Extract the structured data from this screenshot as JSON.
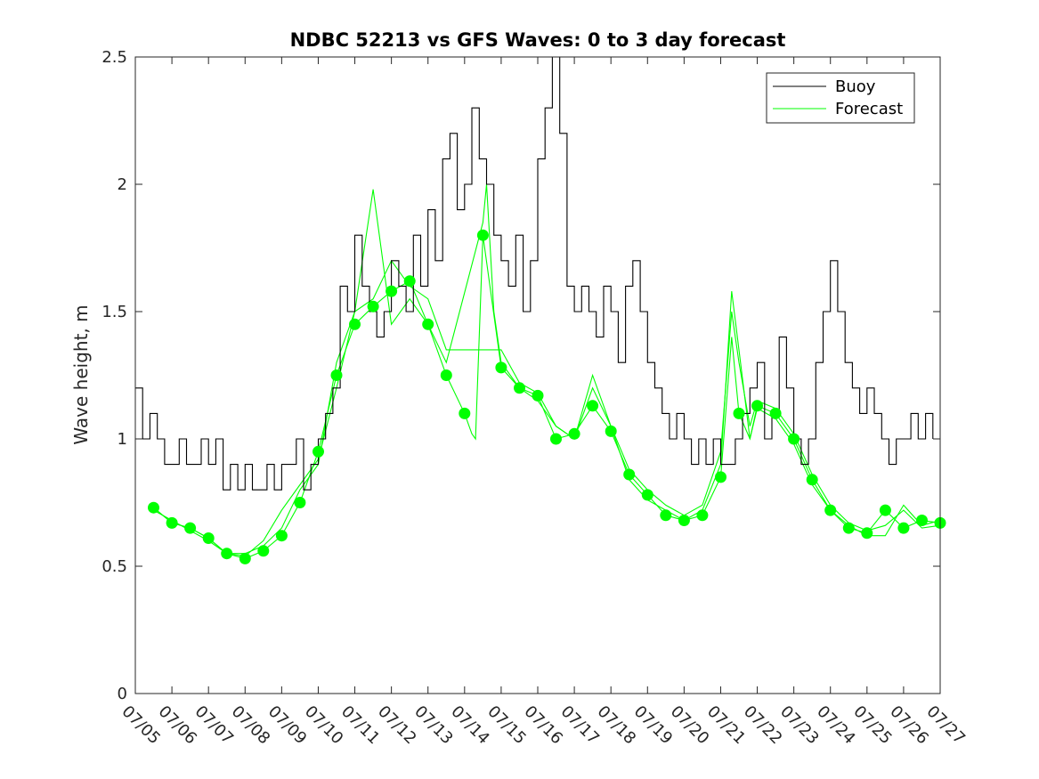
{
  "chart_data": {
    "type": "line",
    "title": "NDBC 52213 vs GFS Waves: 0 to 3 day forecast",
    "xlabel": "",
    "ylabel": "Wave height, m",
    "xlim": [
      0,
      22
    ],
    "ylim": [
      0,
      2.5
    ],
    "grid": false,
    "legend_position": "top-right",
    "x_ticks": [
      "07/05",
      "07/06",
      "07/07",
      "07/08",
      "07/09",
      "07/10",
      "07/11",
      "07/12",
      "07/13",
      "07/14",
      "07/15",
      "07/16",
      "07/17",
      "07/18",
      "07/19",
      "07/20",
      "07/21",
      "07/22",
      "07/23",
      "07/24",
      "07/25",
      "07/26",
      "07/27"
    ],
    "y_ticks": [
      0,
      0.5,
      1,
      1.5,
      2,
      2.5
    ],
    "y_tick_labels": [
      "0",
      "0.5",
      "1",
      "1.5",
      "2",
      "2.5"
    ],
    "series": [
      {
        "name": "Buoy",
        "color": "#000000",
        "x": [
          0.0,
          0.2,
          0.4,
          0.6,
          0.8,
          1.0,
          1.2,
          1.4,
          1.6,
          1.8,
          2.0,
          2.2,
          2.4,
          2.6,
          2.8,
          3.0,
          3.2,
          3.4,
          3.6,
          3.8,
          4.0,
          4.2,
          4.4,
          4.6,
          4.8,
          5.0,
          5.2,
          5.4,
          5.6,
          5.8,
          6.0,
          6.2,
          6.4,
          6.6,
          6.8,
          7.0,
          7.2,
          7.4,
          7.6,
          7.8,
          8.0,
          8.2,
          8.4,
          8.6,
          8.8,
          9.0,
          9.2,
          9.4,
          9.6,
          9.8,
          10.0,
          10.2,
          10.4,
          10.6,
          10.8,
          11.0,
          11.2,
          11.4,
          11.6,
          11.8,
          12.0,
          12.2,
          12.4,
          12.6,
          12.8,
          13.0,
          13.2,
          13.4,
          13.6,
          13.8,
          14.0,
          14.2,
          14.4,
          14.6,
          14.8,
          15.0,
          15.2,
          15.4,
          15.6,
          15.8,
          16.0,
          16.2,
          16.4,
          16.6,
          16.8,
          17.0,
          17.2,
          17.4,
          17.6,
          17.8,
          18.0,
          18.2,
          18.4,
          18.6,
          18.8,
          19.0,
          19.2,
          19.4,
          19.6,
          19.8,
          20.0,
          20.2,
          20.4,
          20.6,
          20.8,
          21.0,
          21.2,
          21.4,
          21.6,
          21.8
        ],
        "values": [
          1.2,
          1.0,
          1.1,
          1.0,
          0.9,
          0.9,
          1.0,
          0.9,
          0.9,
          1.0,
          0.9,
          1.0,
          0.8,
          0.9,
          0.8,
          0.9,
          0.8,
          0.8,
          0.9,
          0.8,
          0.9,
          0.9,
          1.0,
          0.8,
          0.9,
          1.0,
          1.1,
          1.2,
          1.6,
          1.5,
          1.8,
          1.6,
          1.5,
          1.4,
          1.5,
          1.7,
          1.6,
          1.5,
          1.8,
          1.6,
          1.9,
          1.7,
          2.1,
          2.2,
          1.9,
          2.0,
          2.3,
          2.1,
          2.0,
          1.8,
          1.7,
          1.6,
          1.8,
          1.5,
          1.7,
          2.1,
          2.3,
          2.5,
          2.2,
          1.6,
          1.5,
          1.6,
          1.5,
          1.4,
          1.6,
          1.5,
          1.3,
          1.6,
          1.7,
          1.5,
          1.3,
          1.2,
          1.1,
          1.0,
          1.1,
          1.0,
          0.9,
          1.0,
          0.9,
          1.0,
          0.9,
          0.9,
          1.0,
          1.1,
          1.2,
          1.3,
          1.0,
          1.1,
          1.4,
          1.2,
          1.0,
          0.9,
          1.0,
          1.3,
          1.5,
          1.7,
          1.5,
          1.3,
          1.2,
          1.1,
          1.2,
          1.1,
          1.0,
          0.9,
          1.0,
          1.0,
          1.1,
          1.0,
          1.1,
          1.0
        ]
      },
      {
        "name": "Forecast",
        "color": "#00ff00",
        "x": [
          0.5,
          1.0,
          1.5,
          2.0,
          2.5,
          3.0,
          3.5,
          4.0,
          4.5,
          5.0,
          5.5,
          6.0,
          6.5,
          7.0,
          7.5,
          8.0,
          8.5,
          9.0,
          9.2,
          9.3,
          9.5,
          10.0,
          10.5,
          11.0,
          11.5,
          12.0,
          12.5,
          13.0,
          13.5,
          14.0,
          14.5,
          15.0,
          15.5,
          16.0,
          16.3,
          16.5,
          16.8,
          17.0,
          17.5,
          18.0,
          18.5,
          19.0,
          19.5,
          20.0,
          20.5,
          21.0,
          21.5,
          22.0
        ],
        "values": [
          0.73,
          0.67,
          0.65,
          0.61,
          0.55,
          0.53,
          0.56,
          0.62,
          0.75,
          0.95,
          1.25,
          1.45,
          1.52,
          1.58,
          1.62,
          1.45,
          1.25,
          1.1,
          1.02,
          1.0,
          1.8,
          1.28,
          1.2,
          1.17,
          1.0,
          1.02,
          1.13,
          1.03,
          0.86,
          0.78,
          0.7,
          0.68,
          0.7,
          0.85,
          1.4,
          1.1,
          1.0,
          1.13,
          1.1,
          1.0,
          0.84,
          0.72,
          0.65,
          0.63,
          0.72,
          0.65,
          0.68,
          0.67
        ]
      },
      {
        "name": "",
        "color": "#00ff00",
        "x": [
          0.5,
          1.0,
          1.5,
          2.0,
          2.5,
          3.0,
          3.5,
          4.0,
          4.5,
          5.0,
          5.5,
          6.0,
          6.5,
          7.0,
          7.5,
          8.0,
          8.5,
          9.5,
          9.6,
          9.8,
          10.0,
          10.5,
          11.0,
          11.5,
          12.0,
          12.5,
          13.0,
          13.5,
          14.0,
          14.5,
          15.0,
          15.5,
          16.0,
          16.3,
          16.5,
          16.8,
          17.0,
          17.5,
          18.0,
          18.5,
          19.0,
          19.5,
          20.0,
          20.5,
          21.0,
          21.5,
          22.0
        ],
        "values": [
          0.72,
          0.68,
          0.64,
          0.6,
          0.55,
          0.54,
          0.6,
          0.72,
          0.82,
          0.92,
          1.2,
          1.5,
          1.98,
          1.45,
          1.55,
          1.45,
          1.3,
          1.85,
          2.0,
          1.5,
          1.3,
          1.2,
          1.15,
          1.05,
          1.0,
          1.25,
          1.05,
          0.84,
          0.76,
          0.72,
          0.68,
          0.72,
          0.9,
          1.58,
          1.35,
          1.0,
          1.12,
          1.08,
          0.98,
          0.82,
          0.72,
          0.66,
          0.62,
          0.62,
          0.74,
          0.66,
          0.68
        ]
      },
      {
        "name": "",
        "color": "#00ff00",
        "x": [
          0.5,
          1.0,
          1.5,
          2.0,
          2.5,
          3.0,
          3.5,
          4.0,
          4.5,
          5.0,
          5.5,
          6.0,
          6.5,
          7.0,
          7.5,
          8.0,
          8.5,
          10.0,
          10.5,
          11.0,
          11.5,
          12.0,
          12.5,
          13.0,
          13.5,
          14.0,
          14.5,
          15.0,
          15.5,
          16.0,
          16.3,
          16.5,
          16.8,
          17.0,
          17.5,
          18.0,
          18.5,
          19.0,
          19.5,
          20.0,
          20.5,
          21.0,
          21.5,
          22.0
        ],
        "values": [
          0.73,
          0.67,
          0.65,
          0.61,
          0.55,
          0.55,
          0.58,
          0.65,
          0.8,
          0.9,
          1.3,
          1.5,
          1.55,
          1.7,
          1.6,
          1.55,
          1.35,
          1.35,
          1.22,
          1.18,
          1.05,
          1.0,
          1.2,
          1.05,
          0.88,
          0.8,
          0.74,
          0.7,
          0.74,
          0.95,
          1.5,
          1.3,
          1.05,
          1.15,
          1.12,
          1.02,
          0.86,
          0.74,
          0.67,
          0.64,
          0.66,
          0.72,
          0.65,
          0.66
        ]
      }
    ]
  }
}
